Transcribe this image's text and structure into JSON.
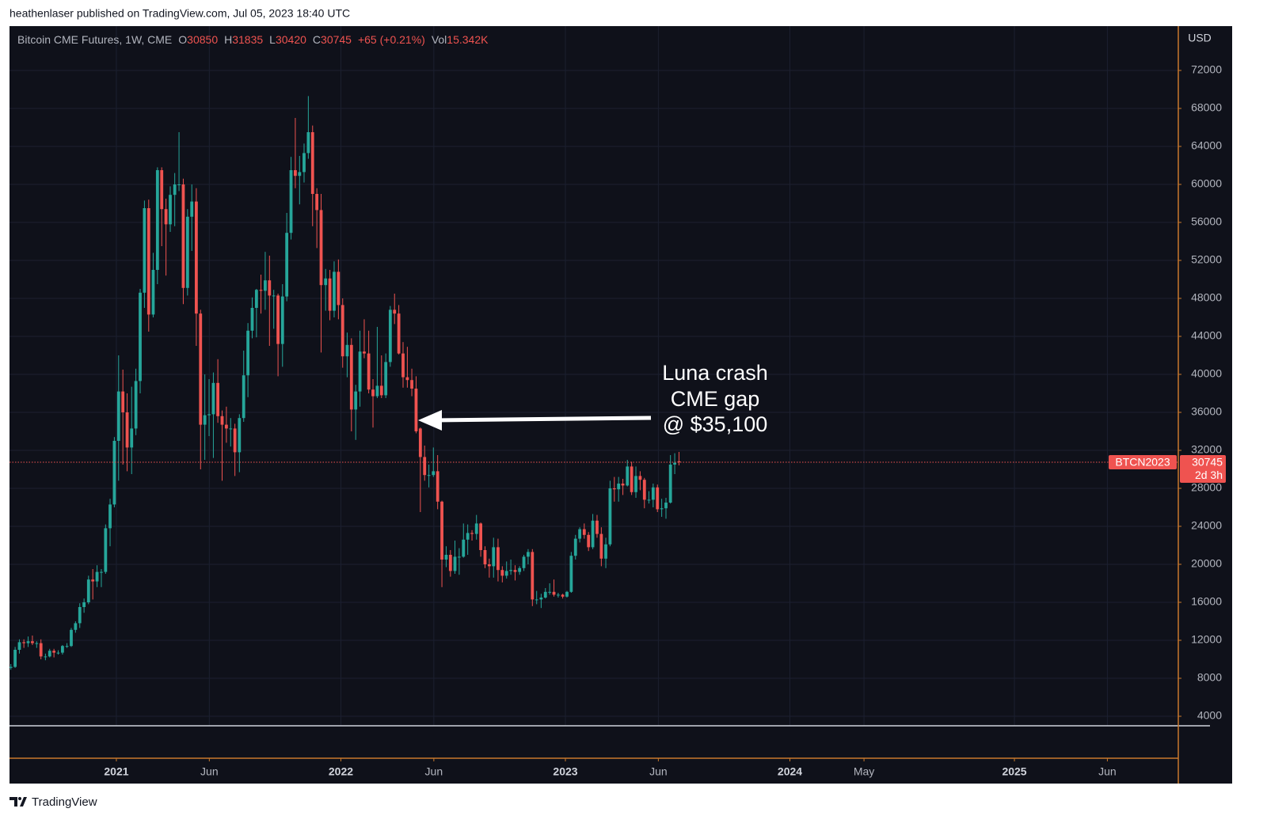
{
  "header": {
    "publisher_line": "heathenlaser published on TradingView.com, Jul 05, 2023 18:40 UTC"
  },
  "footer": {
    "brand": "TradingView"
  },
  "chart_data": {
    "type": "candlestick",
    "symbol_title": "Bitcoin CME Futures, 1W, CME",
    "legend_labels": {
      "open": "O",
      "high": "H",
      "low": "L",
      "close": "C",
      "volume": "Vol"
    },
    "change": "+65 (+0.21%)",
    "volume": "15.342K",
    "currency": "USD",
    "ticker_badge": "BTCN2023",
    "countdown": "2d 3h",
    "annotation": [
      "Luna crash",
      "CME gap",
      "@ $35,100"
    ],
    "up_color": "#26a69a",
    "down_color": "#ef5350",
    "grid": true,
    "last_price_line": true,
    "xlim": [
      2020.524,
      2025.73
    ],
    "xticks": [
      2021,
      {
        "value": 2021.414,
        "label": "Jun"
      },
      2022,
      {
        "value": 2022.414,
        "label": "Jun"
      },
      2023,
      {
        "value": 2023.414,
        "label": "Jun"
      },
      2024,
      {
        "value": 2024.33,
        "label": "May"
      },
      2025,
      {
        "value": 2025.414,
        "label": "Jun"
      }
    ],
    "ylim": [
      3000,
      76667
    ],
    "yticks": [
      4000,
      8000,
      12000,
      16000,
      20000,
      24000,
      28000,
      32000,
      36000,
      40000,
      44000,
      48000,
      52000,
      56000,
      60000,
      64000,
      68000,
      72000
    ],
    "x": [
      2020.53,
      2020.549,
      2020.568,
      2020.588,
      2020.607,
      2020.626,
      2020.645,
      2020.664,
      2020.684,
      2020.703,
      2020.722,
      2020.741,
      2020.76,
      2020.78,
      2020.799,
      2020.818,
      2020.837,
      2020.856,
      2020.876,
      2020.895,
      2020.914,
      2020.933,
      2020.952,
      2020.972,
      2020.991,
      2021.01,
      2021.029,
      2021.048,
      2021.068,
      2021.087,
      2021.106,
      2021.125,
      2021.144,
      2021.164,
      2021.183,
      2021.202,
      2021.221,
      2021.24,
      2021.26,
      2021.279,
      2021.298,
      2021.317,
      2021.336,
      2021.356,
      2021.375,
      2021.394,
      2021.413,
      2021.432,
      2021.452,
      2021.471,
      2021.49,
      2021.509,
      2021.528,
      2021.548,
      2021.567,
      2021.586,
      2021.605,
      2021.624,
      2021.644,
      2021.663,
      2021.682,
      2021.701,
      2021.72,
      2021.74,
      2021.759,
      2021.778,
      2021.797,
      2021.816,
      2021.836,
      2021.855,
      2021.874,
      2021.893,
      2021.912,
      2021.932,
      2021.951,
      2021.97,
      2021.989,
      2022.008,
      2022.028,
      2022.047,
      2022.066,
      2022.085,
      2022.104,
      2022.124,
      2022.143,
      2022.162,
      2022.181,
      2022.2,
      2022.22,
      2022.239,
      2022.258,
      2022.277,
      2022.296,
      2022.316,
      2022.335,
      2022.354,
      2022.373,
      2022.392,
      2022.412,
      2022.431,
      2022.45,
      2022.469,
      2022.488,
      2022.508,
      2022.527,
      2022.546,
      2022.565,
      2022.584,
      2022.604,
      2022.623,
      2022.642,
      2022.661,
      2022.68,
      2022.7,
      2022.719,
      2022.738,
      2022.757,
      2022.776,
      2022.796,
      2022.815,
      2022.834,
      2022.853,
      2022.872,
      2022.892,
      2022.911,
      2022.93,
      2022.949,
      2022.968,
      2022.988,
      2023.007,
      2023.026,
      2023.045,
      2023.064,
      2023.084,
      2023.103,
      2023.122,
      2023.141,
      2023.16,
      2023.18,
      2023.199,
      2023.218,
      2023.237,
      2023.256,
      2023.276,
      2023.295,
      2023.314,
      2023.333,
      2023.352,
      2023.372,
      2023.391,
      2023.41,
      2023.429,
      2023.448,
      2023.468,
      2023.487,
      2023.506
    ],
    "ohlc": [
      [
        9100,
        9500,
        8900,
        9200
      ],
      [
        9200,
        11300,
        9100,
        11000
      ],
      [
        11000,
        12100,
        10600,
        11800
      ],
      [
        11800,
        12100,
        11200,
        11700
      ],
      [
        11700,
        12400,
        11300,
        11900
      ],
      [
        11900,
        12500,
        11500,
        11700
      ],
      [
        11700,
        11900,
        11200,
        11700
      ],
      [
        11700,
        12100,
        10000,
        10300
      ],
      [
        10300,
        10600,
        9900,
        10300
      ],
      [
        10300,
        11100,
        10200,
        10900
      ],
      [
        10900,
        11100,
        10200,
        10700
      ],
      [
        10700,
        10950,
        10500,
        10700
      ],
      [
        10700,
        11500,
        10500,
        11400
      ],
      [
        11400,
        11700,
        11200,
        11400
      ],
      [
        11400,
        13300,
        11300,
        13100
      ],
      [
        13100,
        14000,
        12800,
        13800
      ],
      [
        13800,
        15900,
        13300,
        15500
      ],
      [
        15500,
        16400,
        14900,
        16000
      ],
      [
        16000,
        18800,
        15800,
        18400
      ],
      [
        18400,
        19500,
        16300,
        18200
      ],
      [
        18200,
        19900,
        17600,
        19200
      ],
      [
        19200,
        19500,
        17600,
        19200
      ],
      [
        19200,
        24200,
        19000,
        23800
      ],
      [
        23800,
        26900,
        21900,
        26300
      ],
      [
        26300,
        33400,
        26000,
        33000
      ],
      [
        33000,
        42000,
        28800,
        38200
      ],
      [
        38200,
        40500,
        30500,
        36000
      ],
      [
        36000,
        38000,
        29800,
        32300
      ],
      [
        32300,
        38700,
        29500,
        34300
      ],
      [
        34300,
        40600,
        33600,
        39300
      ],
      [
        39300,
        49000,
        38000,
        48600
      ],
      [
        48600,
        58300,
        47000,
        57500
      ],
      [
        57500,
        58400,
        44500,
        46300
      ],
      [
        46300,
        52800,
        46000,
        51000
      ],
      [
        51000,
        61800,
        49500,
        61500
      ],
      [
        61500,
        61800,
        53500,
        57400
      ],
      [
        57400,
        58500,
        50400,
        55800
      ],
      [
        55800,
        59800,
        55000,
        58900
      ],
      [
        58900,
        61200,
        55600,
        60000
      ],
      [
        60000,
        65500,
        59300,
        60000
      ],
      [
        60000,
        60600,
        47400,
        49100
      ],
      [
        49100,
        57400,
        48300,
        56600
      ],
      [
        56600,
        60000,
        53000,
        58200
      ],
      [
        58200,
        59600,
        43000,
        46400
      ],
      [
        46400,
        46800,
        30000,
        34700
      ],
      [
        34700,
        40000,
        31000,
        35700
      ],
      [
        35700,
        39500,
        33500,
        35800
      ],
      [
        35800,
        40200,
        31200,
        39100
      ],
      [
        39100,
        41600,
        34900,
        35600
      ],
      [
        35600,
        36200,
        28800,
        34700
      ],
      [
        34700,
        36600,
        32800,
        34300
      ],
      [
        34300,
        35400,
        32400,
        34300
      ],
      [
        34300,
        34800,
        29300,
        31800
      ],
      [
        31800,
        35800,
        29700,
        35400
      ],
      [
        35400,
        42500,
        35000,
        39900
      ],
      [
        39900,
        45400,
        37600,
        44600
      ],
      [
        44600,
        48100,
        43800,
        47000
      ],
      [
        47000,
        49000,
        43900,
        48900
      ],
      [
        48900,
        50500,
        46400,
        48800
      ],
      [
        48800,
        52900,
        46800,
        49900
      ],
      [
        49900,
        52500,
        43000,
        48300
      ],
      [
        48300,
        48900,
        44800,
        48300
      ],
      [
        48300,
        48500,
        39800,
        43200
      ],
      [
        43200,
        49500,
        40800,
        48200
      ],
      [
        48200,
        57000,
        47700,
        54900
      ],
      [
        54900,
        62900,
        54200,
        61500
      ],
      [
        61500,
        67000,
        59600,
        60900
      ],
      [
        60900,
        63000,
        57900,
        61300
      ],
      [
        61300,
        64300,
        60200,
        63300
      ],
      [
        63300,
        69300,
        62700,
        65500
      ],
      [
        65500,
        66200,
        55600,
        59000
      ],
      [
        59000,
        59600,
        53300,
        57300
      ],
      [
        57300,
        59000,
        42300,
        49400
      ],
      [
        49400,
        51100,
        46700,
        50100
      ],
      [
        50100,
        51000,
        45700,
        46700
      ],
      [
        46700,
        51900,
        46000,
        50800
      ],
      [
        50800,
        52100,
        45800,
        47300
      ],
      [
        47300,
        48000,
        40700,
        41900
      ],
      [
        41900,
        44400,
        39700,
        43100
      ],
      [
        43100,
        43800,
        34000,
        36300
      ],
      [
        36300,
        38900,
        33100,
        38200
      ],
      [
        38200,
        44600,
        36600,
        42400
      ],
      [
        42400,
        45800,
        41700,
        42200
      ],
      [
        42200,
        44600,
        38000,
        38400
      ],
      [
        38400,
        39500,
        34400,
        37700
      ],
      [
        37700,
        45000,
        37500,
        38800
      ],
      [
        38800,
        42000,
        37500,
        37800
      ],
      [
        37800,
        42200,
        37500,
        41300
      ],
      [
        41300,
        47200,
        40800,
        46800
      ],
      [
        46800,
        48500,
        45300,
        46400
      ],
      [
        46400,
        47300,
        42100,
        42200
      ],
      [
        42200,
        43400,
        38600,
        39700
      ],
      [
        39700,
        42900,
        38600,
        39400
      ],
      [
        39400,
        40600,
        37700,
        38500
      ],
      [
        38500,
        39800,
        33800,
        34000
      ],
      [
        34300,
        34400,
        25500,
        31300
      ],
      [
        31300,
        32500,
        28800,
        29400
      ],
      [
        29400,
        30500,
        28100,
        29400
      ],
      [
        29400,
        32300,
        29200,
        29800
      ],
      [
        29800,
        31500,
        25800,
        26600
      ],
      [
        26600,
        26700,
        17600,
        20500
      ],
      [
        20500,
        21900,
        19700,
        21000
      ],
      [
        21000,
        21500,
        18700,
        19300
      ],
      [
        19300,
        22500,
        19000,
        20800
      ],
      [
        20800,
        21700,
        18900,
        20800
      ],
      [
        20800,
        24300,
        20700,
        22600
      ],
      [
        22600,
        24200,
        21000,
        23300
      ],
      [
        23300,
        23600,
        22500,
        23200
      ],
      [
        23200,
        25200,
        22600,
        24300
      ],
      [
        24300,
        24400,
        20800,
        21500
      ],
      [
        21500,
        21900,
        19600,
        20000
      ],
      [
        20000,
        20600,
        18600,
        19800
      ],
      [
        19800,
        22800,
        18600,
        21800
      ],
      [
        21800,
        22700,
        18200,
        19400
      ],
      [
        19400,
        19800,
        18100,
        18800
      ],
      [
        18800,
        20300,
        18500,
        19300
      ],
      [
        19300,
        20500,
        18900,
        19400
      ],
      [
        19400,
        19900,
        18300,
        19200
      ],
      [
        19200,
        19800,
        18900,
        19600
      ],
      [
        19600,
        21000,
        19300,
        20800
      ],
      [
        20800,
        21600,
        20000,
        21300
      ],
      [
        21300,
        21600,
        15600,
        16300
      ],
      [
        16300,
        17200,
        15800,
        16300
      ],
      [
        16300,
        16900,
        15400,
        16500
      ],
      [
        16500,
        17500,
        16400,
        17100
      ],
      [
        17100,
        18000,
        16800,
        17100
      ],
      [
        17100,
        18400,
        16600,
        16800
      ],
      [
        16800,
        17000,
        16500,
        16800
      ],
      [
        16800,
        16900,
        16400,
        16600
      ],
      [
        16600,
        17200,
        16500,
        17100
      ],
      [
        17100,
        21300,
        17000,
        20900
      ],
      [
        20900,
        23100,
        20500,
        22700
      ],
      [
        22700,
        23900,
        22300,
        23700
      ],
      [
        23700,
        24300,
        22700,
        23100
      ],
      [
        23100,
        23400,
        21400,
        21800
      ],
      [
        21800,
        25300,
        21600,
        24600
      ],
      [
        24600,
        25200,
        22800,
        23200
      ],
      [
        23200,
        23900,
        19800,
        20600
      ],
      [
        20600,
        22800,
        19600,
        22100
      ],
      [
        22100,
        28800,
        21900,
        28000
      ],
      [
        28000,
        29200,
        26600,
        27900
      ],
      [
        27900,
        29200,
        26600,
        28500
      ],
      [
        28500,
        29000,
        27300,
        28300
      ],
      [
        28300,
        31000,
        28200,
        30300
      ],
      [
        30300,
        30800,
        27300,
        27600
      ],
      [
        27600,
        30300,
        27000,
        29300
      ],
      [
        29300,
        29800,
        27800,
        28900
      ],
      [
        28900,
        29100,
        25900,
        26800
      ],
      [
        26800,
        27700,
        26400,
        26800
      ],
      [
        26800,
        28500,
        26000,
        28100
      ],
      [
        28100,
        28400,
        25500,
        25800
      ],
      [
        25800,
        26900,
        25000,
        25900
      ],
      [
        25900,
        27000,
        24800,
        26500
      ],
      [
        26500,
        31500,
        26400,
        30500
      ],
      [
        30500,
        31700,
        29500,
        30700
      ],
      [
        30850,
        31835,
        30420,
        30745
      ]
    ]
  }
}
